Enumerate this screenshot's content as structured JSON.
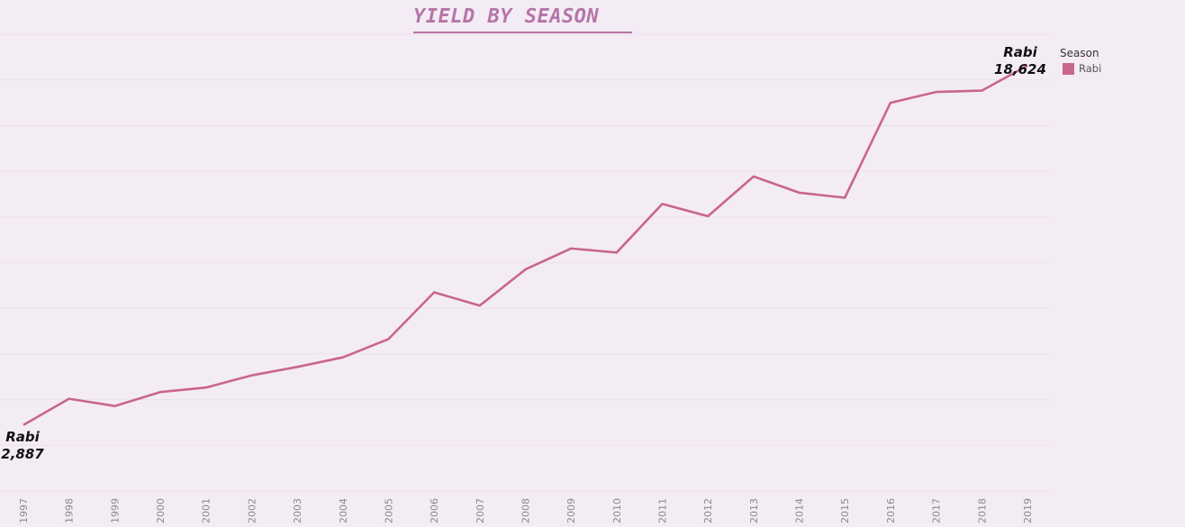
{
  "chart_data": {
    "type": "line",
    "title": "YIELD BY SEASON",
    "xlabel": "",
    "ylabel": "",
    "x": [
      "1997",
      "1998",
      "1999",
      "2000",
      "2001",
      "2002",
      "2003",
      "2004",
      "2005",
      "2006",
      "2007",
      "2008",
      "2009",
      "2010",
      "2011",
      "2012",
      "2013",
      "2014",
      "2015",
      "2016",
      "2017",
      "2018",
      "2019"
    ],
    "series": [
      {
        "name": "Rabi",
        "color": "#c8668c",
        "values": [
          2887,
          4040,
          3720,
          4330,
          4530,
          5060,
          5430,
          5850,
          6650,
          8700,
          8120,
          9700,
          10620,
          10440,
          12570,
          12030,
          13770,
          13060,
          12840,
          17000,
          17470,
          17530,
          18624
        ]
      }
    ],
    "ylim": [
      0,
      20000
    ],
    "grid": "horizontal",
    "legend": {
      "title": "Season",
      "position": "top-right"
    },
    "annotations": [
      {
        "series": "Rabi",
        "x": "1997",
        "label": "Rabi",
        "value_text": "2,887"
      },
      {
        "series": "Rabi",
        "x": "2019",
        "label": "Rabi",
        "value_text": "18,624"
      }
    ]
  }
}
